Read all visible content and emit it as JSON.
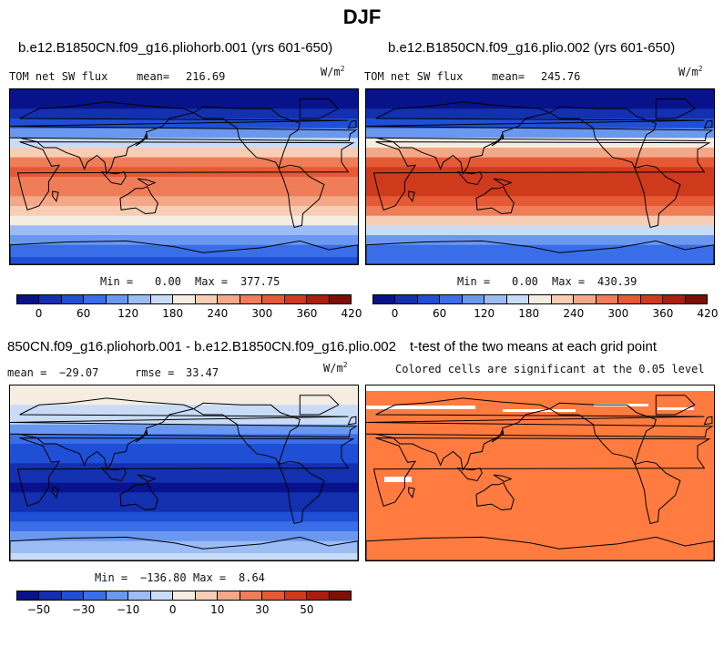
{
  "figure": {
    "title": "DJF"
  },
  "colors": {
    "palette": [
      "#08128a",
      "#1330b0",
      "#1f4fd6",
      "#3a6ee8",
      "#6a98f0",
      "#9bbcf5",
      "#c9dcf7",
      "#f5ece2",
      "#f7cdb4",
      "#f3a888",
      "#ee7d58",
      "#e55a34",
      "#d03a1c",
      "#ab1e0c",
      "#7d0f05"
    ],
    "significance": "#ff7b40"
  },
  "chart_data": [
    {
      "type": "heatmap",
      "id": "panel-1",
      "title": "b.e12.B1850CN.f09_g16.pliohorb.001 (yrs 601-650)",
      "field_label": "TOM net SW flux",
      "mean_label": "mean=",
      "mean": "216.69",
      "units_base": "W/m",
      "units_exp": "2",
      "min_label": "Min =",
      "min": "0.00",
      "max_label": "Max =",
      "max": "377.75",
      "colorbar_ticks": [
        "0",
        "60",
        "120",
        "180",
        "240",
        "300",
        "360",
        "420"
      ],
      "zonal_profile": {
        "lat": [
          90,
          75,
          65,
          55,
          45,
          35,
          25,
          15,
          5,
          -5,
          -15,
          -25,
          -35,
          -45,
          -55,
          -65,
          -75,
          -90
        ],
        "value": [
          0,
          20,
          40,
          70,
          120,
          180,
          250,
          300,
          330,
          320,
          300,
          280,
          250,
          210,
          160,
          120,
          100,
          80
        ]
      }
    },
    {
      "type": "heatmap",
      "id": "panel-2",
      "title": "b.e12.B1850CN.f09_g16.plio.002 (yrs 601-650)",
      "field_label": "TOM net SW flux",
      "mean_label": "mean=",
      "mean": "245.76",
      "units_base": "W/m",
      "units_exp": "2",
      "min_label": "Min =",
      "min": "0.00",
      "max_label": "Max =",
      "max": "430.39",
      "colorbar_ticks": [
        "0",
        "60",
        "120",
        "180",
        "240",
        "300",
        "360",
        "420"
      ],
      "zonal_profile": {
        "lat": [
          90,
          75,
          65,
          55,
          45,
          35,
          25,
          15,
          5,
          -5,
          -15,
          -25,
          -35,
          -45,
          -55,
          -65,
          -75,
          -90
        ],
        "value": [
          0,
          20,
          40,
          70,
          140,
          220,
          290,
          340,
          370,
          375,
          360,
          330,
          300,
          250,
          190,
          140,
          110,
          90
        ]
      }
    },
    {
      "type": "heatmap",
      "id": "panel-3",
      "title": "850CN.f09_g16.pliohorb.001 - b.e12.B1850CN.f09_g16.plio.002",
      "mean_label": "mean =",
      "mean": "−29.07",
      "rmse_label": "rmse =",
      "rmse": "33.47",
      "units_base": "W/m",
      "units_exp": "2",
      "min_label": "Min =",
      "min": "−136.80",
      "max_label": "Max =",
      "max": "8.64",
      "colorbar_ticks": [
        "−50",
        "−30",
        "−10",
        "0",
        "10",
        "30",
        "50"
      ],
      "zonal_profile": {
        "lat": [
          90,
          75,
          65,
          55,
          45,
          35,
          25,
          15,
          5,
          -5,
          -15,
          -25,
          -35,
          -45,
          -55,
          -65,
          -75,
          -90
        ],
        "value": [
          0,
          -2,
          -6,
          -12,
          -25,
          -40,
          -45,
          -50,
          -55,
          -60,
          -65,
          -60,
          -55,
          -50,
          -40,
          -25,
          -15,
          -10
        ]
      }
    },
    {
      "type": "heatmap",
      "id": "panel-4",
      "title": "t-test of the two means at each grid point",
      "subtitle": "Colored cells are significant at the 0.05 level",
      "significant_fraction": 0.97
    }
  ]
}
